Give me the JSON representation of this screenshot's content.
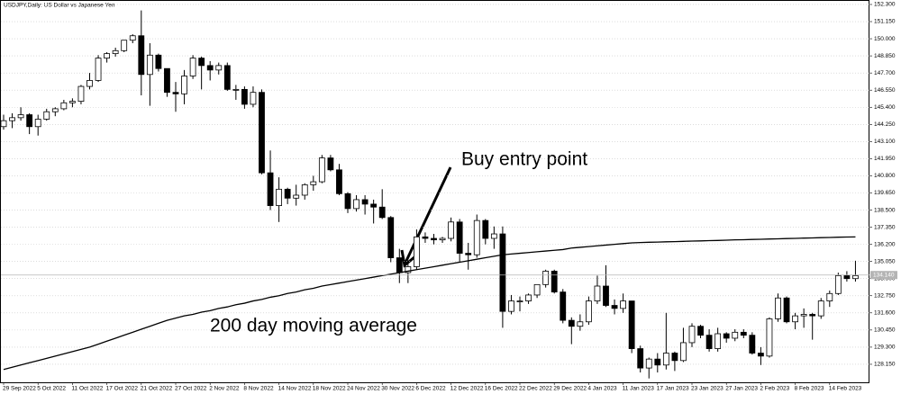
{
  "chart_data": {
    "type": "candlestick",
    "title": "USDJPY,Daily:  US Dollar vs Japanese Yen",
    "annotations": {
      "entry": "Buy entry point",
      "ma": "200 day moving average"
    },
    "categories": [
      "29 Sep 2022",
      null,
      null,
      null,
      "5 Oct 2022",
      null,
      null,
      null,
      "11 Oct 2022",
      null,
      null,
      null,
      "17 Oct 2022",
      null,
      null,
      null,
      "21 Oct 2022",
      null,
      null,
      null,
      "27 Oct 2022",
      null,
      null,
      null,
      "2 Nov 2022",
      null,
      null,
      null,
      "8 Nov 2022",
      null,
      null,
      null,
      "14 Nov 2022",
      null,
      null,
      null,
      "18 Nov 2022",
      null,
      null,
      null,
      "24 Nov 2022",
      null,
      null,
      null,
      "30 Nov 2022",
      null,
      null,
      null,
      "6 Dec 2022",
      null,
      null,
      null,
      "12 Dec 2022",
      null,
      null,
      null,
      "16 Dec 2022",
      null,
      null,
      null,
      "22 Dec 2022",
      null,
      null,
      null,
      "29 Dec 2022",
      null,
      null,
      null,
      "4 Jan 2023",
      null,
      null,
      null,
      "11 Jan 2023",
      null,
      null,
      null,
      "17 Jan 2023",
      null,
      null,
      null,
      "23 Jan 2023",
      null,
      null,
      null,
      "27 Jan 2023",
      null,
      null,
      null,
      "2 Feb 2023",
      null,
      null,
      null,
      "8 Feb 2023",
      null,
      null,
      null,
      "14 Feb 2023",
      null,
      null,
      null
    ],
    "candles": [
      [
        144.1,
        144.9,
        143.9,
        144.5
      ],
      [
        144.5,
        145.0,
        144.0,
        144.7
      ],
      [
        144.7,
        145.4,
        144.5,
        144.9
      ],
      [
        144.9,
        145.0,
        143.6,
        144.1
      ],
      [
        144.1,
        144.9,
        143.5,
        144.6
      ],
      [
        144.6,
        145.3,
        144.5,
        145.1
      ],
      [
        145.1,
        145.4,
        144.8,
        145.3
      ],
      [
        145.3,
        145.9,
        145.2,
        145.7
      ],
      [
        145.7,
        146.0,
        145.4,
        145.8
      ],
      [
        145.8,
        146.9,
        145.6,
        146.8
      ],
      [
        146.8,
        147.7,
        146.6,
        147.2
      ],
      [
        147.2,
        148.9,
        147.1,
        148.7
      ],
      [
        148.7,
        149.1,
        148.4,
        149.0
      ],
      [
        149.0,
        149.4,
        148.8,
        149.2
      ],
      [
        149.2,
        149.9,
        149.1,
        149.9
      ],
      [
        149.9,
        150.3,
        149.7,
        150.2
      ],
      [
        150.2,
        151.9,
        146.2,
        147.6
      ],
      [
        147.6,
        149.7,
        145.5,
        148.9
      ],
      [
        148.9,
        149.0,
        147.8,
        148.0
      ],
      [
        148.0,
        148.0,
        146.1,
        146.4
      ],
      [
        146.4,
        147.1,
        145.1,
        146.3
      ],
      [
        146.3,
        147.9,
        145.6,
        147.5
      ],
      [
        147.5,
        148.9,
        147.3,
        148.7
      ],
      [
        148.7,
        148.8,
        146.6,
        148.2
      ],
      [
        148.2,
        148.5,
        147.2,
        147.9
      ],
      [
        147.9,
        148.4,
        147.6,
        148.2
      ],
      [
        148.2,
        148.4,
        146.5,
        146.6
      ],
      [
        146.6,
        146.9,
        145.9,
        146.6
      ],
      [
        146.6,
        146.8,
        145.3,
        145.6
      ],
      [
        145.6,
        146.8,
        145.4,
        146.4
      ],
      [
        146.4,
        146.6,
        140.9,
        141.0
      ],
      [
        141.0,
        142.5,
        138.5,
        138.8
      ],
      [
        138.8,
        140.7,
        137.7,
        139.9
      ],
      [
        139.9,
        140.0,
        138.9,
        139.3
      ],
      [
        139.3,
        140.2,
        138.8,
        139.5
      ],
      [
        139.5,
        140.3,
        139.2,
        140.2
      ],
      [
        140.2,
        140.8,
        139.8,
        140.4
      ],
      [
        140.4,
        142.2,
        140.3,
        142.0
      ],
      [
        142.0,
        142.2,
        141.1,
        141.2
      ],
      [
        141.2,
        141.6,
        139.5,
        139.6
      ],
      [
        139.6,
        139.7,
        138.3,
        138.6
      ],
      [
        138.6,
        139.5,
        138.4,
        139.2
      ],
      [
        139.2,
        139.5,
        138.2,
        138.9
      ],
      [
        138.9,
        139.2,
        137.6,
        138.7
      ],
      [
        138.7,
        139.9,
        137.9,
        138.0
      ],
      [
        138.0,
        138.1,
        135.0,
        135.3
      ],
      [
        135.3,
        135.9,
        133.6,
        134.3
      ],
      [
        134.3,
        135.1,
        133.6,
        134.7
      ],
      [
        134.7,
        137.2,
        134.5,
        136.7
      ],
      [
        136.7,
        137.0,
        136.3,
        136.6
      ],
      [
        136.6,
        136.9,
        136.2,
        136.5
      ],
      [
        136.5,
        136.7,
        136.3,
        136.6
      ],
      [
        136.6,
        138.0,
        136.4,
        137.7
      ],
      [
        137.7,
        137.9,
        135.0,
        135.6
      ],
      [
        135.6,
        136.3,
        134.5,
        135.5
      ],
      [
        135.5,
        138.2,
        135.3,
        137.8
      ],
      [
        137.8,
        137.9,
        136.2,
        136.6
      ],
      [
        136.6,
        137.4,
        135.9,
        136.9
      ],
      [
        136.9,
        137.4,
        130.6,
        131.7
      ],
      [
        131.7,
        132.8,
        131.5,
        132.4
      ],
      [
        132.4,
        132.7,
        131.7,
        132.4
      ],
      [
        132.4,
        132.9,
        132.2,
        132.8
      ],
      [
        132.8,
        133.5,
        132.6,
        133.5
      ],
      [
        133.5,
        134.5,
        133.3,
        134.4
      ],
      [
        134.4,
        134.5,
        132.9,
        133.0
      ],
      [
        133.0,
        133.2,
        130.9,
        131.1
      ],
      [
        131.1,
        131.3,
        129.5,
        130.7
      ],
      [
        130.7,
        131.5,
        130.4,
        131.0
      ],
      [
        131.0,
        132.7,
        130.8,
        132.4
      ],
      [
        132.4,
        134.1,
        132.2,
        133.4
      ],
      [
        133.4,
        134.8,
        132.0,
        132.1
      ],
      [
        132.1,
        132.5,
        131.5,
        131.9
      ],
      [
        131.9,
        132.9,
        131.6,
        132.4
      ],
      [
        132.4,
        132.4,
        128.9,
        129.2
      ],
      [
        129.2,
        129.4,
        127.6,
        127.9
      ],
      [
        127.9,
        128.6,
        127.2,
        128.5
      ],
      [
        128.5,
        128.9,
        127.6,
        128.1
      ],
      [
        128.1,
        131.6,
        127.8,
        128.9
      ],
      [
        128.9,
        129.0,
        127.7,
        128.4
      ],
      [
        128.4,
        130.6,
        128.3,
        129.6
      ],
      [
        129.6,
        130.9,
        129.3,
        130.7
      ],
      [
        130.7,
        130.8,
        129.9,
        130.1
      ],
      [
        130.1,
        130.5,
        129.0,
        129.2
      ],
      [
        129.2,
        130.6,
        129.0,
        130.2
      ],
      [
        130.2,
        130.3,
        129.6,
        129.9
      ],
      [
        129.9,
        130.5,
        129.7,
        130.3
      ],
      [
        130.3,
        130.5,
        129.9,
        130.1
      ],
      [
        130.1,
        130.3,
        128.8,
        128.9
      ],
      [
        128.9,
        129.3,
        128.1,
        128.7
      ],
      [
        128.7,
        131.3,
        128.6,
        131.2
      ],
      [
        131.2,
        132.9,
        131.0,
        132.6
      ],
      [
        132.6,
        132.7,
        130.9,
        131.0
      ],
      [
        131.0,
        131.6,
        130.5,
        131.4
      ],
      [
        131.4,
        131.9,
        130.6,
        131.5
      ],
      [
        131.5,
        131.6,
        129.8,
        131.4
      ],
      [
        131.4,
        132.6,
        131.2,
        132.4
      ],
      [
        132.4,
        133.1,
        132.0,
        132.9
      ],
      [
        132.9,
        134.3,
        132.8,
        134.1
      ],
      [
        134.1,
        134.4,
        133.7,
        133.9
      ],
      [
        133.9,
        135.1,
        133.7,
        134.1
      ]
    ],
    "moving_average": [
      127.8,
      127.95,
      128.1,
      128.25,
      128.4,
      128.55,
      128.7,
      128.85,
      129.0,
      129.15,
      129.3,
      129.5,
      129.7,
      129.9,
      130.1,
      130.3,
      130.5,
      130.7,
      130.9,
      131.1,
      131.25,
      131.4,
      131.5,
      131.65,
      131.75,
      131.9,
      132.0,
      132.15,
      132.25,
      132.4,
      132.5,
      132.65,
      132.75,
      132.9,
      133.0,
      133.15,
      133.25,
      133.4,
      133.5,
      133.6,
      133.7,
      133.8,
      133.9,
      134.0,
      134.1,
      134.2,
      134.3,
      134.4,
      134.5,
      134.6,
      134.7,
      134.8,
      134.9,
      135.0,
      135.1,
      135.2,
      135.3,
      135.4,
      135.5,
      135.55,
      135.6,
      135.65,
      135.7,
      135.75,
      135.8,
      135.85,
      135.95,
      136.0,
      136.05,
      136.1,
      136.15,
      136.2,
      136.25,
      136.3,
      136.32,
      136.34,
      136.35,
      136.37,
      136.38,
      136.4,
      136.42,
      136.43,
      136.45,
      136.46,
      136.48,
      136.5,
      136.51,
      136.53,
      136.54,
      136.56,
      136.57,
      136.59,
      136.6,
      136.62,
      136.63,
      136.65,
      136.66,
      136.68,
      136.69,
      136.7
    ],
    "bid": 134.14,
    "bid_label": "134.140",
    "ylim": [
      126.94,
      152.6
    ],
    "yticks": [
      {
        "value": 152.3,
        "label": "152.300"
      },
      {
        "value": 151.15,
        "label": "151.150"
      },
      {
        "value": 150.0,
        "label": "150.000"
      },
      {
        "value": 148.85,
        "label": "148.850"
      },
      {
        "value": 147.7,
        "label": "147.700"
      },
      {
        "value": 146.55,
        "label": "146.550"
      },
      {
        "value": 145.4,
        "label": "145.400"
      },
      {
        "value": 144.25,
        "label": "144.250"
      },
      {
        "value": 143.1,
        "label": "143.100"
      },
      {
        "value": 141.95,
        "label": "141.950"
      },
      {
        "value": 140.8,
        "label": "140.800"
      },
      {
        "value": 139.65,
        "label": "139.650"
      },
      {
        "value": 138.5,
        "label": "138.500"
      },
      {
        "value": 137.35,
        "label": "137.350"
      },
      {
        "value": 136.2,
        "label": "136.200"
      },
      {
        "value": 135.05,
        "label": "135.050"
      },
      {
        "value": 133.9,
        "label": "133.900"
      },
      {
        "value": 132.75,
        "label": "132.750"
      },
      {
        "value": 131.6,
        "label": "131.600"
      },
      {
        "value": 130.45,
        "label": "130.450"
      },
      {
        "value": 129.3,
        "label": "129.300"
      },
      {
        "value": 128.15,
        "label": "128.150"
      }
    ],
    "grid": true,
    "up_color": "#ffffff",
    "down_color": "#000000",
    "line_color": "#000000"
  }
}
